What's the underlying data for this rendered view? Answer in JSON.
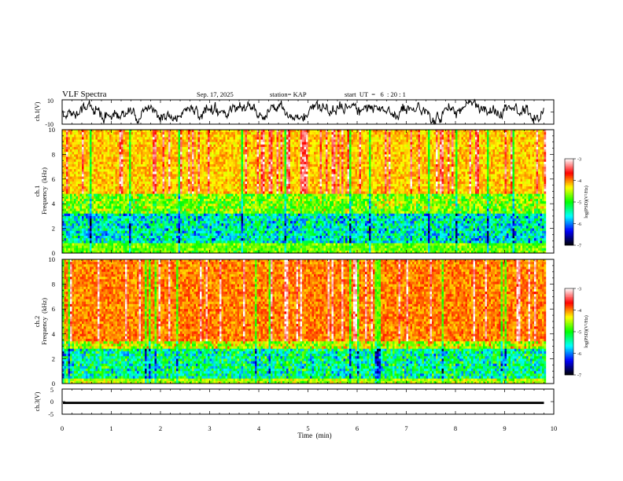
{
  "header": {
    "title": "VLF Spectra",
    "date": "Sep. 17, 2025",
    "station": "station= KAP",
    "start_ut": "start  UT  =   6  : 20 : 1"
  },
  "chart_data": [
    {
      "type": "line",
      "id": "ch1-waveform",
      "ylabel": "ch.1(V)",
      "ylim": [
        -10,
        10
      ],
      "y_ticks": [
        "10",
        "-10"
      ],
      "xlim": [
        0,
        10
      ],
      "data_end_min": 9.8,
      "description_amplitude_range": [
        -8,
        8
      ]
    },
    {
      "type": "heatmap",
      "id": "ch1-spectrogram",
      "ylabel_line1": "ch.1",
      "ylabel_line2": "Frequency  (kHz)",
      "ylim": [
        0,
        10
      ],
      "y_ticks": [
        "0",
        "2",
        "4",
        "6",
        "8",
        "10"
      ],
      "xlim": [
        0,
        10
      ],
      "data_end_min": 9.8,
      "band_profile": {
        "strong_band_khz": [
          0.8,
          3.2
        ],
        "mid_band_khz": [
          3.2,
          4.8
        ],
        "base_level": -4.2
      },
      "colorbar": {
        "label": "log(PSD)(V²/Hz)",
        "range": [
          -7,
          -3
        ],
        "ticks": [
          "-3",
          "-4",
          "-5",
          "-6",
          "-7"
        ]
      }
    },
    {
      "type": "heatmap",
      "id": "ch2-spectrogram",
      "ylabel_line1": "ch.2",
      "ylabel_line2": "Frequency  (kHz)",
      "ylim": [
        0,
        10
      ],
      "y_ticks": [
        "0",
        "2",
        "4",
        "6",
        "8",
        "10"
      ],
      "xlim": [
        0,
        10
      ],
      "data_end_min": 9.8,
      "band_profile": {
        "strong_band_khz": [
          0.5,
          2.8
        ],
        "mid_band_khz": [
          2.8,
          3.4
        ],
        "base_level": -4.0
      },
      "colorbar": {
        "label": "log(PSD)(V²/Hz)",
        "range": [
          -7,
          -3
        ],
        "ticks": [
          "-3",
          "-4",
          "-5",
          "-6",
          "-7"
        ]
      }
    },
    {
      "type": "line",
      "id": "ch3-waveform",
      "ylabel": "ch.3(V)",
      "ylim": [
        -5,
        5
      ],
      "y_ticks": [
        "5",
        "0",
        "-5"
      ],
      "xlim": [
        0,
        10
      ],
      "data_end_min": 9.8,
      "baseline_v": -0.5,
      "thickness_v": 0.9
    }
  ],
  "x_axis": {
    "label": "Time  (min)",
    "ticks": [
      "0",
      "1",
      "2",
      "3",
      "4",
      "5",
      "6",
      "7",
      "8",
      "9",
      "10"
    ]
  },
  "colors": {
    "colormap": [
      "#ffffff",
      "#ff0000",
      "#ffff00",
      "#00ff00",
      "#00ffff",
      "#0000ff",
      "#000000"
    ]
  }
}
